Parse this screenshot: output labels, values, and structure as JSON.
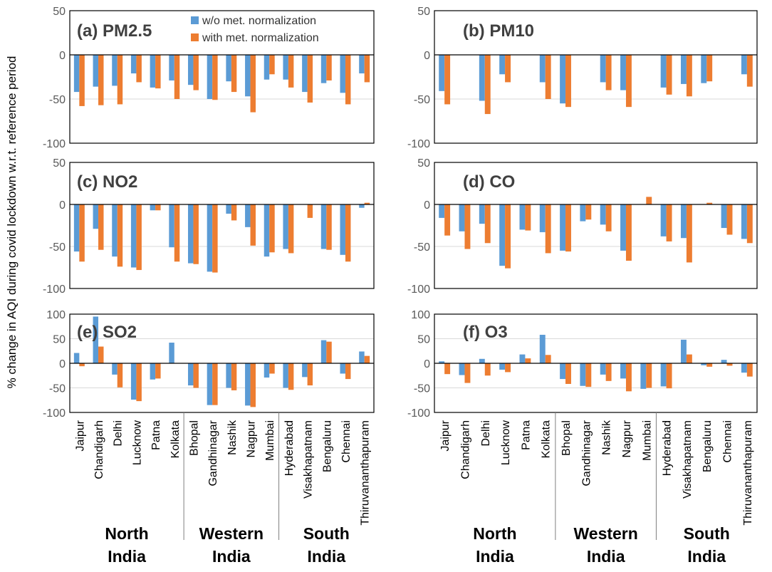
{
  "figure": {
    "ylabel": "% change in AQI during covid lockdown w.r.t. reference period",
    "legend": {
      "series_names": [
        "w/o met. normalization",
        "with met. normalization"
      ],
      "placement": "top-right of panel (a)"
    },
    "colors": {
      "without": "#5B9BD5",
      "with": "#ED7D31",
      "grid": "#D9D9D9",
      "axis": "#000000",
      "tick_text": "#595959",
      "panel_title": "#404040"
    },
    "regions": [
      "North India",
      "Western India",
      "South India"
    ]
  },
  "chart_data": [
    {
      "type": "bar",
      "panel": "a",
      "title": "(a) PM2.5",
      "ylim": [
        -100,
        50
      ],
      "yticks": [
        50,
        0,
        -50,
        -100
      ],
      "categories": [
        "Jaipur",
        "Chandigarh",
        "Delhi",
        "Lucknow",
        "Patna",
        "Kolkata",
        "Bhopal",
        "Gandhinagar",
        "Nashik",
        "Nagpur",
        "Mumbai",
        "Hyderabad",
        "Visakhapatnam",
        "Bengaluru",
        "Chennai",
        "Thiruvananthapuram"
      ],
      "series": [
        {
          "name": "w/o met. normalization",
          "values": [
            -42,
            -36,
            -35,
            -21,
            -37,
            -29,
            -34,
            -50,
            -30,
            -47,
            -28,
            -28,
            -42,
            -32,
            -43,
            -21
          ]
        },
        {
          "name": "with met. normalization",
          "values": [
            -58,
            -57,
            -56,
            -31,
            -38,
            -50,
            -40,
            -51,
            -42,
            -65,
            -22,
            -37,
            -54,
            -29,
            -56,
            -31
          ]
        }
      ]
    },
    {
      "type": "bar",
      "panel": "b",
      "title": "(b) PM10",
      "ylim": [
        -100,
        50
      ],
      "yticks": [
        50,
        0,
        -50,
        -100
      ],
      "categories": [
        "Jaipur",
        "Chandigarh",
        "Delhi",
        "Lucknow",
        "Patna",
        "Kolkata",
        "Bhopal",
        "Gandhinagar",
        "Nashik",
        "Nagpur",
        "Mumbai",
        "Hyderabad",
        "Visakhapatnam",
        "Bengaluru",
        "Chennai",
        "Thiruvananthapuram"
      ],
      "series": [
        {
          "name": "w/o met. normalization",
          "values": [
            -41,
            0,
            -52,
            -22,
            0,
            -31,
            -55,
            0,
            -31,
            -40,
            0,
            -37,
            -33,
            -32,
            0,
            -22
          ]
        },
        {
          "name": "with met. normalization",
          "values": [
            -56,
            0,
            -67,
            -31,
            0,
            -50,
            -59,
            0,
            -40,
            -59,
            0,
            -45,
            -47,
            -30,
            0,
            -36
          ]
        }
      ]
    },
    {
      "type": "bar",
      "panel": "c",
      "title": "(c) NO2",
      "ylim": [
        -100,
        50
      ],
      "yticks": [
        50,
        0,
        -50,
        -100
      ],
      "categories": [
        "Jaipur",
        "Chandigarh",
        "Delhi",
        "Lucknow",
        "Patna",
        "Kolkata",
        "Bhopal",
        "Gandhinagar",
        "Nashik",
        "Nagpur",
        "Mumbai",
        "Hyderabad",
        "Visakhapatnam",
        "Bengaluru",
        "Chennai",
        "Thiruvananthapuram"
      ],
      "series": [
        {
          "name": "w/o met. normalization",
          "values": [
            -56,
            -29,
            -62,
            -75,
            -7,
            -51,
            -70,
            -80,
            -11,
            -27,
            -62,
            -53,
            0,
            -53,
            -60,
            -4
          ]
        },
        {
          "name": "with met. normalization",
          "values": [
            -68,
            -54,
            -74,
            -78,
            -7,
            -68,
            -71,
            -81,
            -19,
            -49,
            -57,
            -58,
            -16,
            -54,
            -68,
            2
          ]
        }
      ]
    },
    {
      "type": "bar",
      "panel": "d",
      "title": "(d) CO",
      "ylim": [
        -100,
        50
      ],
      "yticks": [
        50,
        0,
        -50,
        -100
      ],
      "categories": [
        "Jaipur",
        "Chandigarh",
        "Delhi",
        "Lucknow",
        "Patna",
        "Kolkata",
        "Bhopal",
        "Gandhinagar",
        "Nashik",
        "Nagpur",
        "Mumbai",
        "Hyderabad",
        "Visakhapatnam",
        "Bengaluru",
        "Chennai",
        "Thiruvananthapuram"
      ],
      "series": [
        {
          "name": "w/o met. normalization",
          "values": [
            -16,
            -32,
            -23,
            -73,
            -30,
            -33,
            -55,
            -20,
            -24,
            -55,
            0,
            -38,
            -40,
            0,
            -28,
            -41
          ]
        },
        {
          "name": "with met. normalization",
          "values": [
            -37,
            -53,
            -46,
            -76,
            -31,
            -58,
            -56,
            -18,
            -32,
            -67,
            9,
            -44,
            -69,
            2,
            -36,
            -46
          ]
        }
      ]
    },
    {
      "type": "bar",
      "panel": "e",
      "title": "(e) SO2",
      "ylim": [
        -100,
        100
      ],
      "yticks": [
        100,
        50,
        0,
        -50,
        -100
      ],
      "categories": [
        "Jaipur",
        "Chandigarh",
        "Delhi",
        "Lucknow",
        "Patna",
        "Kolkata",
        "Bhopal",
        "Gandhinagar",
        "Nashik",
        "Nagpur",
        "Mumbai",
        "Hyderabad",
        "Visakhapatnam",
        "Bengaluru",
        "Chennai",
        "Thiruvananthapuram"
      ],
      "series": [
        {
          "name": "w/o met. normalization",
          "values": [
            21,
            95,
            -23,
            -74,
            -33,
            42,
            -45,
            -85,
            -50,
            -86,
            -29,
            -50,
            -28,
            47,
            -21,
            24
          ]
        },
        {
          "name": "with met. normalization",
          "values": [
            -6,
            34,
            -49,
            -77,
            -31,
            0,
            -50,
            -85,
            -55,
            -89,
            -21,
            -54,
            -45,
            44,
            -32,
            15
          ]
        }
      ]
    },
    {
      "type": "bar",
      "panel": "f",
      "title": "(f) O3",
      "ylim": [
        -100,
        100
      ],
      "yticks": [
        100,
        50,
        0,
        -50,
        -100
      ],
      "categories": [
        "Jaipur",
        "Chandigarh",
        "Delhi",
        "Lucknow",
        "Patna",
        "Kolkata",
        "Bhopal",
        "Gandhinagar",
        "Nashik",
        "Nagpur",
        "Mumbai",
        "Hyderabad",
        "Visakhapatnam",
        "Bengaluru",
        "Chennai",
        "Thiruvananthapuram"
      ],
      "series": [
        {
          "name": "w/o met. normalization",
          "values": [
            4,
            -24,
            9,
            -13,
            18,
            58,
            -32,
            -46,
            -23,
            -31,
            -52,
            -47,
            48,
            -4,
            7,
            -19
          ]
        },
        {
          "name": "with met. normalization",
          "values": [
            -22,
            -40,
            -25,
            -18,
            10,
            17,
            -42,
            -48,
            -36,
            -57,
            -50,
            -51,
            18,
            -7,
            -5,
            -27
          ]
        }
      ]
    }
  ]
}
